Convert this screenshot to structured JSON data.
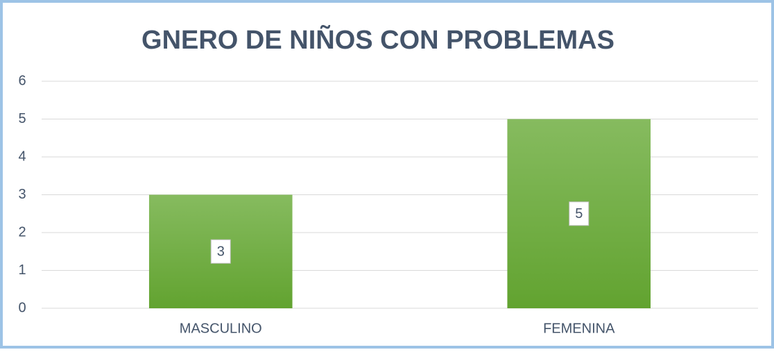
{
  "chart_data": {
    "type": "bar",
    "title": "GNERO DE NIÑOS CON PROBLEMAS",
    "categories": [
      "MASCULINO",
      "FEMENINA"
    ],
    "values": [
      3,
      5
    ],
    "color": "#6aac3a",
    "ylim": [
      0,
      6
    ],
    "yticks": [
      0,
      1,
      2,
      3,
      4,
      5,
      6
    ],
    "grid": true
  }
}
